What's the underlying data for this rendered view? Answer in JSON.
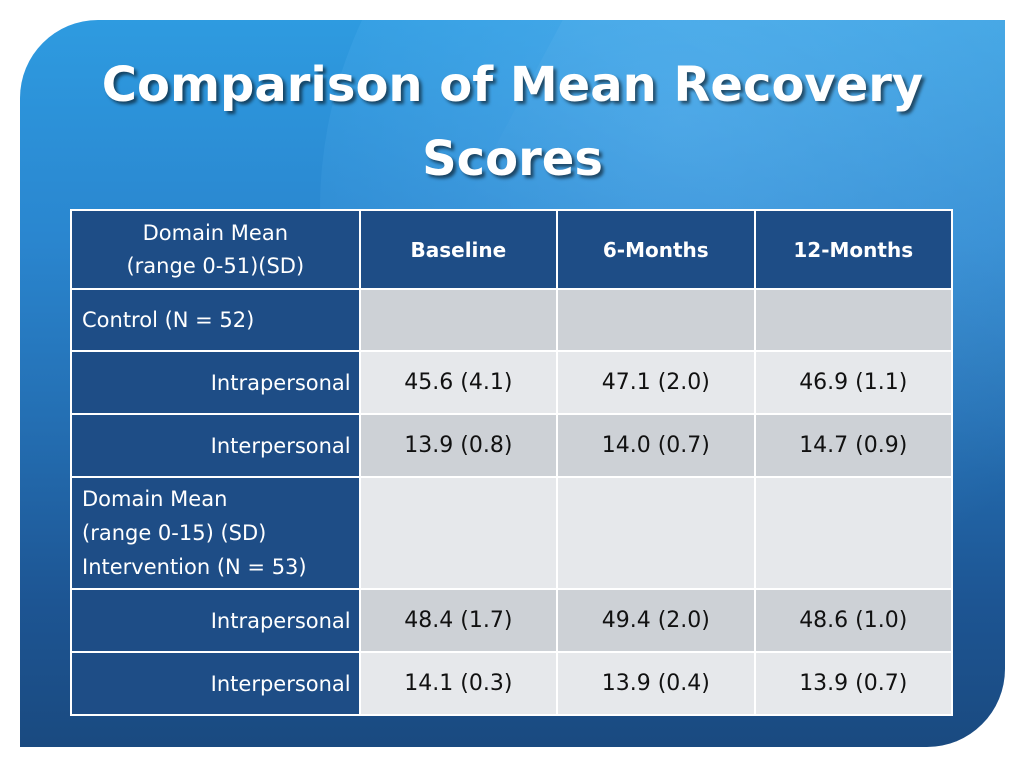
{
  "slide": {
    "title": "Comparison of Mean Recovery Scores"
  },
  "table": {
    "header": {
      "first_line1": "Domain Mean",
      "first_line2": "(range 0-51)(SD)",
      "columns": [
        "Baseline",
        "6-Months",
        "12-Months"
      ]
    },
    "control": {
      "label": "Control (N = 52)",
      "rows": [
        {
          "label": "Intrapersonal",
          "values": [
            "45.6 (4.1)",
            "47.1 (2.0)",
            "46.9 (1.1)"
          ]
        },
        {
          "label": "Interpersonal",
          "values": [
            "13.9 (0.8)",
            "14.0 (0.7)",
            "14.7 (0.9)"
          ]
        }
      ]
    },
    "intervention": {
      "label_line1": "Domain Mean",
      "label_line2": "(range 0-15) (SD)",
      "label_line3": "Intervention (N = 53)",
      "rows": [
        {
          "label": "Intrapersonal",
          "values": [
            "48.4 (1.7)",
            "49.4 (2.0)",
            "48.6 (1.0)"
          ]
        },
        {
          "label": "Interpersonal",
          "values": [
            "14.1 (0.3)",
            "13.9 (0.4)",
            "13.9 (0.7)"
          ]
        }
      ]
    }
  }
}
